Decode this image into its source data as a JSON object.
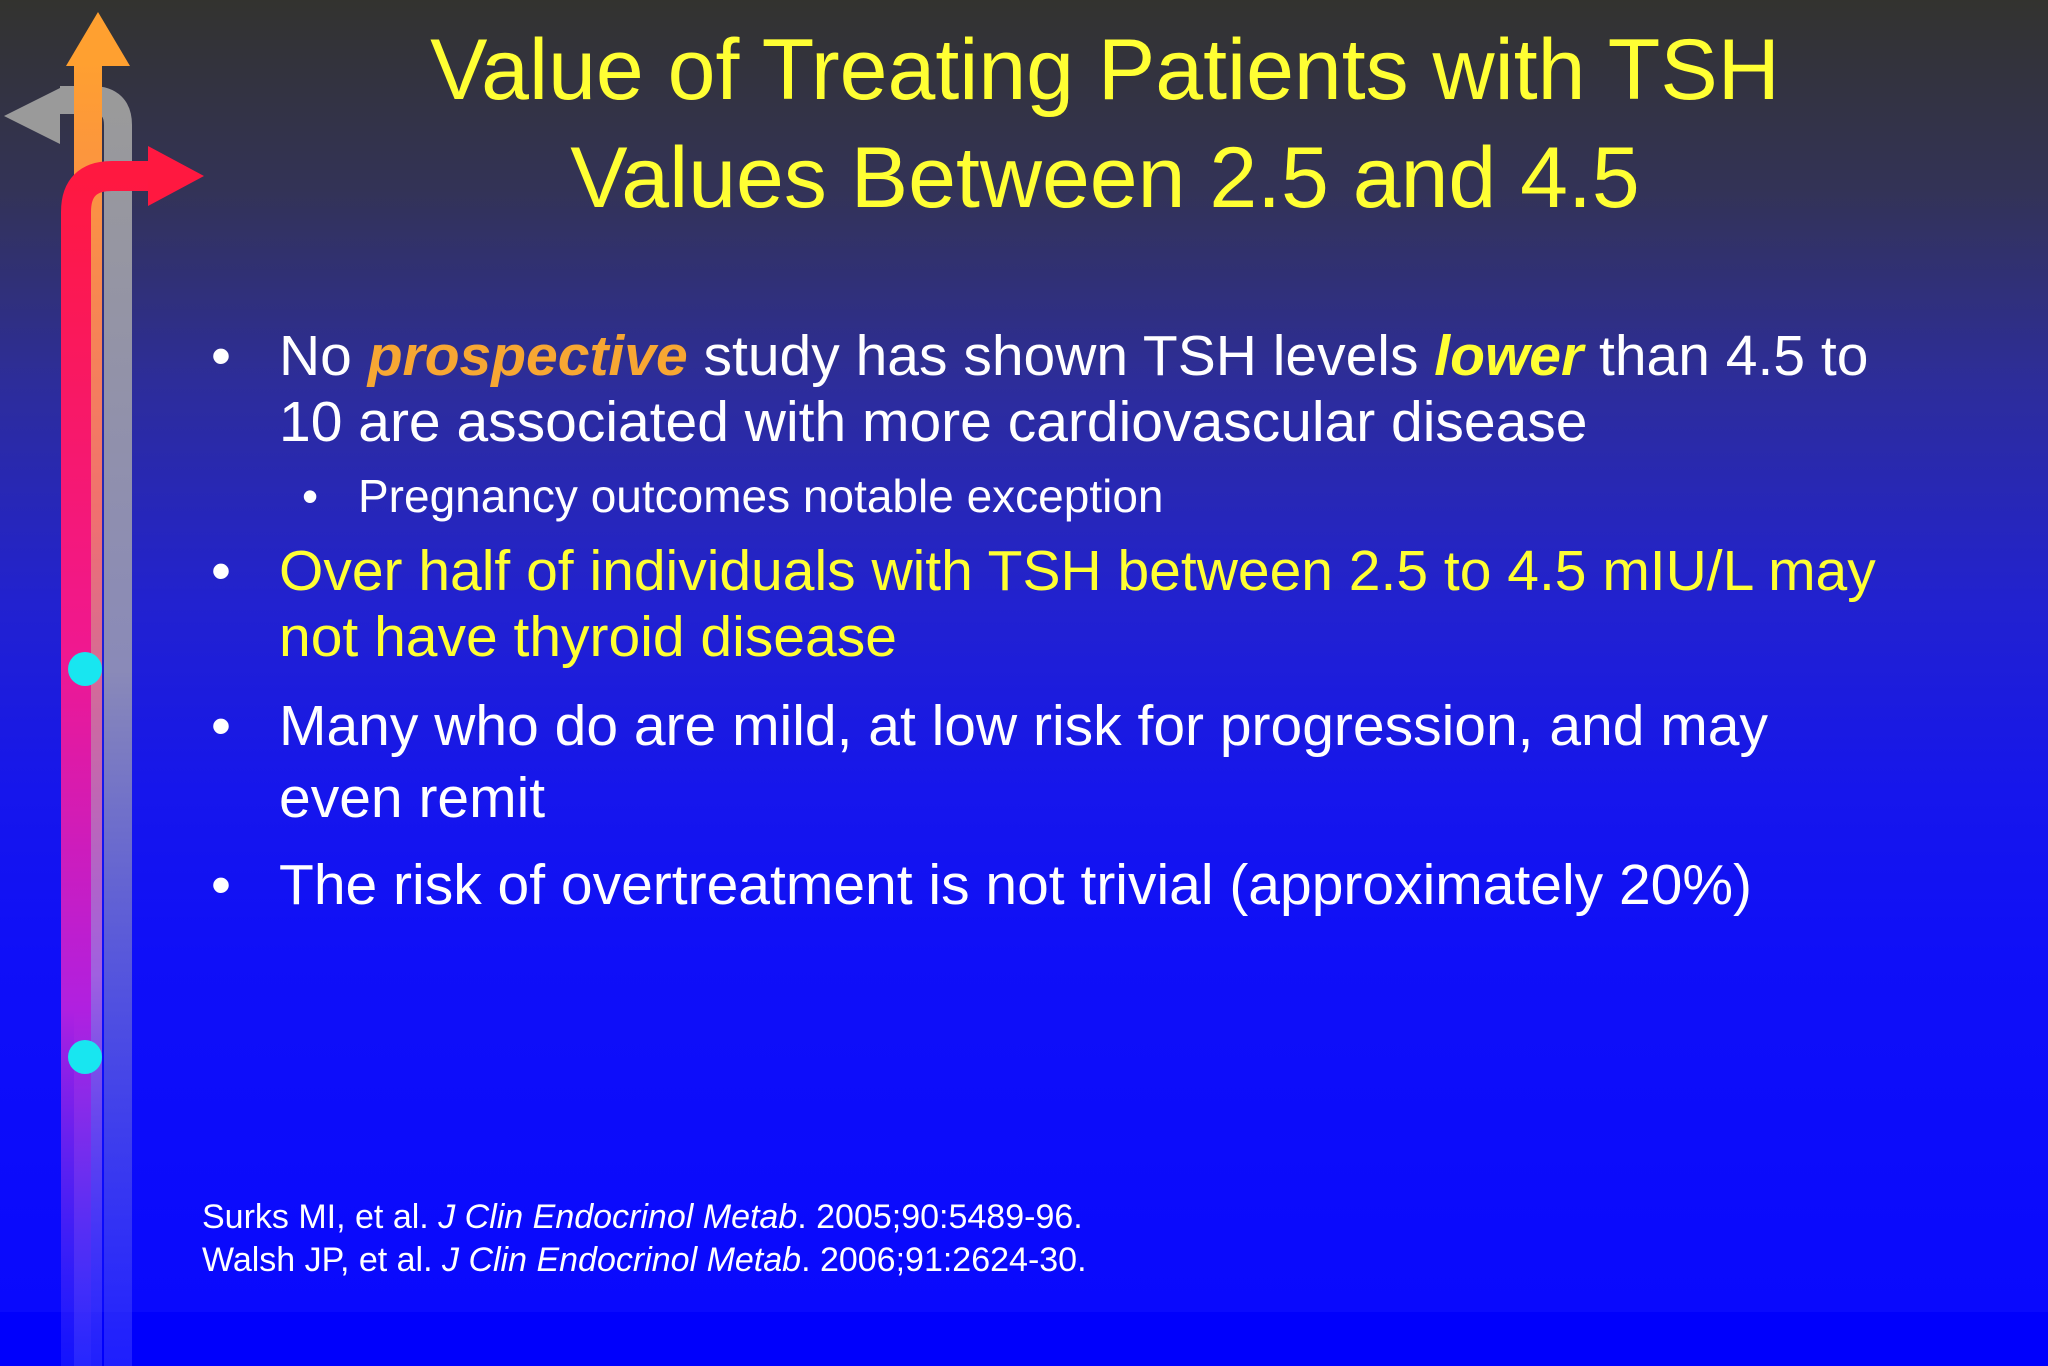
{
  "colors": {
    "title": "#ffff33",
    "body_text": "#ffffff",
    "emphasis_orange": "#f7a733",
    "emphasis_yellow": "#ffff33",
    "dot": "#18e6f0"
  },
  "title": {
    "line1": "Value of Treating Patients with TSH",
    "line2": "Values Between 2.5 and 4.5"
  },
  "bullet_char": "•",
  "bullets": {
    "b1": {
      "t1": "No ",
      "em1": "prospective",
      "t2": " study has shown  TSH levels ",
      "em2": "lower",
      "t3": " than 4.5 to",
      "line2": "10 are associated with more cardiovascular disease"
    },
    "b1_sub": "Pregnancy outcomes notable exception",
    "b2": {
      "line1": "Over half of individuals with TSH between 2.5 to 4.5 mIU/L may",
      "line2": "not have thyroid disease"
    },
    "b3": {
      "line1": "Many who do are mild, at low risk for progression, and may",
      "line2": "even remit"
    },
    "b4": {
      "line1": "The risk of overtreatment is not trivial (approximately 20%)"
    }
  },
  "references": {
    "ref1": {
      "authors": "Surks MI, et al. ",
      "journal": "J Clin Endocrinol Metab",
      "rest": ". 2005;90:5489-96."
    },
    "ref2": {
      "authors": "Walsh JP, et al. ",
      "journal": "J Clin Endocrinol Metab",
      "rest": ". 2006;91:2624-30."
    }
  }
}
